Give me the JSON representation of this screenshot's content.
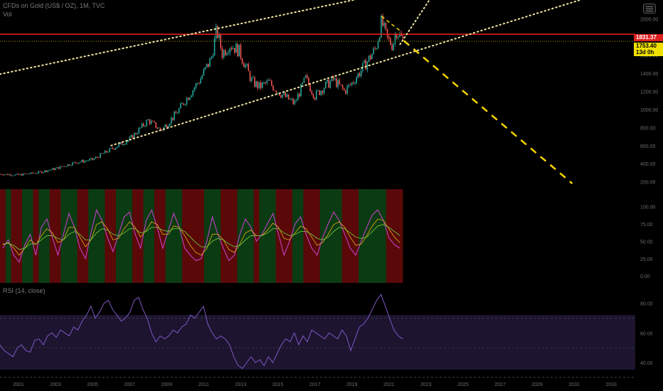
{
  "header": {
    "title": "CFDs on Gold (US$ / OZ), 1M, TVC",
    "vol_label": "Vol"
  },
  "price_labels": {
    "resistance": "1831.37",
    "last": "1753.40",
    "countdown": "13d 0h"
  },
  "rsi_panel": {
    "title": "RSI (14, close)"
  },
  "colors": {
    "up": "#26a69a",
    "down": "#ef5350",
    "resistance_line": "#e01f1f",
    "trend_dots": "#f0e6a0",
    "forecast_dash": "#f5d400",
    "rsi_line": "#7e57c2",
    "rsi_band": "#1d1430",
    "osc_green": "#0b3b12",
    "osc_red": "#5a0808"
  },
  "chart_data": [
    {
      "type": "candlestick",
      "panel": "price",
      "x_ticks": [
        "2001",
        "2003",
        "2005",
        "2007",
        "2009",
        "2011",
        "2013",
        "2015",
        "2017",
        "2019",
        "2021",
        "2023",
        "2025",
        "2027",
        "2029",
        "2031",
        "2033"
      ],
      "y_ticks": [
        200,
        400,
        600,
        800,
        1000,
        1200,
        1400,
        1600,
        1800,
        2000
      ],
      "ylim": [
        150,
        2100
      ],
      "xlim": [
        2000.0,
        2034.3
      ],
      "close_series": [
        {
          "x": 2000.0,
          "y": 285
        },
        {
          "x": 2001.0,
          "y": 275
        },
        {
          "x": 2002.0,
          "y": 300
        },
        {
          "x": 2003.0,
          "y": 345
        },
        {
          "x": 2004.0,
          "y": 410
        },
        {
          "x": 2005.0,
          "y": 445
        },
        {
          "x": 2006.0,
          "y": 560
        },
        {
          "x": 2007.0,
          "y": 670
        },
        {
          "x": 2008.0,
          "y": 880
        },
        {
          "x": 2008.7,
          "y": 770
        },
        {
          "x": 2009.5,
          "y": 950
        },
        {
          "x": 2010.0,
          "y": 1100
        },
        {
          "x": 2010.8,
          "y": 1330
        },
        {
          "x": 2011.4,
          "y": 1560
        },
        {
          "x": 2011.7,
          "y": 1880
        },
        {
          "x": 2012.0,
          "y": 1620
        },
        {
          "x": 2012.4,
          "y": 1720
        },
        {
          "x": 2012.9,
          "y": 1650
        },
        {
          "x": 2013.3,
          "y": 1460
        },
        {
          "x": 2013.6,
          "y": 1310
        },
        {
          "x": 2014.0,
          "y": 1250
        },
        {
          "x": 2014.5,
          "y": 1300
        },
        {
          "x": 2015.0,
          "y": 1200
        },
        {
          "x": 2015.9,
          "y": 1065
        },
        {
          "x": 2016.5,
          "y": 1340
        },
        {
          "x": 2017.0,
          "y": 1150
        },
        {
          "x": 2017.5,
          "y": 1250
        },
        {
          "x": 2018.0,
          "y": 1330
        },
        {
          "x": 2018.6,
          "y": 1200
        },
        {
          "x": 2019.0,
          "y": 1290
        },
        {
          "x": 2019.7,
          "y": 1490
        },
        {
          "x": 2020.3,
          "y": 1680
        },
        {
          "x": 2020.6,
          "y": 1970
        },
        {
          "x": 2020.9,
          "y": 1780
        },
        {
          "x": 2021.2,
          "y": 1710
        },
        {
          "x": 2021.4,
          "y": 1880
        },
        {
          "x": 2021.6,
          "y": 1810
        },
        {
          "x": 2021.8,
          "y": 1753
        }
      ],
      "resistance": 1831.37,
      "last_price": 1753.4,
      "upper_channel": [
        {
          "x": 2000.0,
          "y": 1390
        },
        {
          "x": 2023.5,
          "y": 2400
        }
      ],
      "lower_channel": [
        {
          "x": 2006.0,
          "y": 600
        },
        {
          "x": 2034.3,
          "y": 2400
        }
      ],
      "forecast_line": [
        {
          "x": 2021.8,
          "y": 1760
        },
        {
          "x": 2030.9,
          "y": 180
        }
      ]
    },
    {
      "type": "line",
      "panel": "oscillator",
      "y_ticks": [
        0,
        25,
        50,
        75,
        100
      ],
      "ylim": [
        -10,
        125
      ],
      "series": [
        {
          "values": [
            40,
            52,
            30,
            20,
            45,
            60,
            30,
            70,
            82,
            55,
            30,
            60,
            90,
            70,
            40,
            25,
            62,
            95,
            80,
            55,
            35,
            60,
            85,
            92,
            60,
            40,
            80,
            95,
            70,
            40,
            65,
            90,
            70,
            40,
            30,
            22,
            25,
            50,
            85,
            60,
            40,
            22,
            30,
            60,
            82,
            70,
            50,
            60,
            75,
            90,
            60,
            30,
            50,
            75,
            85,
            60,
            40,
            30,
            55,
            75,
            92,
            80,
            60,
            40,
            30,
            50,
            70,
            88,
            95,
            80,
            55,
            45,
            40
          ]
        },
        {
          "values": [
            45,
            48,
            40,
            30,
            40,
            52,
            45,
            58,
            68,
            62,
            48,
            52,
            70,
            70,
            56,
            42,
            52,
            74,
            78,
            68,
            52,
            54,
            68,
            78,
            70,
            56,
            66,
            78,
            74,
            60,
            60,
            72,
            70,
            58,
            44,
            34,
            30,
            40,
            60,
            60,
            52,
            38,
            34,
            46,
            62,
            66,
            58,
            58,
            66,
            76,
            70,
            54,
            52,
            62,
            72,
            68,
            56,
            44,
            48,
            60,
            74,
            78,
            70,
            56,
            44,
            46,
            58,
            72,
            82,
            80,
            68,
            56,
            48
          ]
        },
        {
          "values": [
            46,
            47,
            44,
            38,
            40,
            46,
            46,
            52,
            58,
            58,
            54,
            52,
            60,
            64,
            60,
            52,
            52,
            62,
            68,
            66,
            60,
            58,
            62,
            68,
            68,
            62,
            64,
            70,
            70,
            66,
            64,
            68,
            68,
            64,
            56,
            48,
            42,
            42,
            50,
            54,
            52,
            46,
            42,
            44,
            52,
            58,
            58,
            58,
            62,
            68,
            68,
            62,
            58,
            60,
            64,
            64,
            60,
            54,
            52,
            56,
            64,
            70,
            68,
            62,
            56,
            54,
            56,
            64,
            72,
            74,
            70,
            64,
            58
          ]
        }
      ]
    },
    {
      "type": "line",
      "panel": "rsi",
      "y_ticks": [
        40,
        60,
        80
      ],
      "band": [
        30,
        70
      ],
      "mid": 50,
      "ylim": [
        28,
        88
      ],
      "series": [
        {
          "values": [
            52,
            48,
            46,
            44,
            50,
            52,
            48,
            47,
            55,
            56,
            52,
            58,
            60,
            57,
            62,
            60,
            58,
            64,
            62,
            68,
            72,
            78,
            70,
            74,
            80,
            82,
            76,
            72,
            68,
            70,
            74,
            82,
            84,
            76,
            70,
            60,
            54,
            58,
            56,
            58,
            62,
            60,
            64,
            66,
            72,
            70,
            74,
            78,
            66,
            60,
            56,
            58,
            56,
            52,
            44,
            38,
            36,
            40,
            44,
            40,
            42,
            38,
            44,
            40,
            46,
            52,
            56,
            54,
            60,
            52,
            58,
            54,
            62,
            60,
            58,
            56,
            60,
            58,
            56,
            62,
            58,
            48,
            56,
            64,
            66,
            70,
            76,
            82,
            86,
            78,
            70,
            62,
            58,
            56
          ]
        }
      ]
    }
  ]
}
